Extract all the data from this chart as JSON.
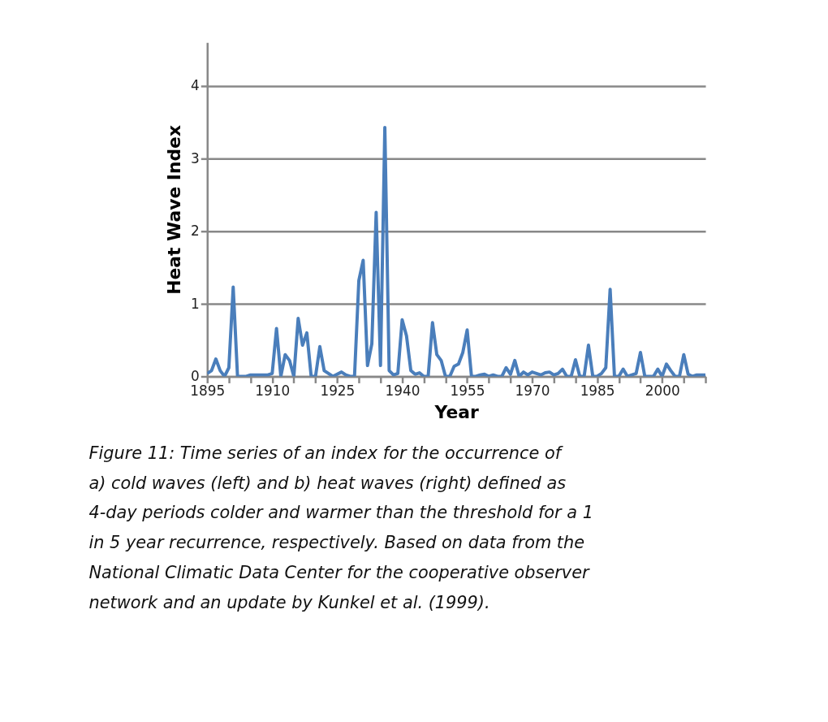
{
  "chart_data": {
    "type": "line",
    "xlabel": "Year",
    "ylabel": "Heat Wave Index",
    "x": [
      1895,
      1896,
      1897,
      1898,
      1899,
      1900,
      1901,
      1902,
      1903,
      1904,
      1905,
      1906,
      1907,
      1908,
      1909,
      1910,
      1911,
      1912,
      1913,
      1914,
      1915,
      1916,
      1917,
      1918,
      1919,
      1920,
      1921,
      1922,
      1923,
      1924,
      1925,
      1926,
      1927,
      1928,
      1929,
      1930,
      1931,
      1932,
      1933,
      1934,
      1935,
      1936,
      1937,
      1938,
      1939,
      1940,
      1941,
      1942,
      1943,
      1944,
      1945,
      1946,
      1947,
      1948,
      1949,
      1950,
      1951,
      1952,
      1953,
      1954,
      1955,
      1956,
      1957,
      1958,
      1959,
      1960,
      1961,
      1962,
      1963,
      1964,
      1965,
      1966,
      1967,
      1968,
      1969,
      1970,
      1971,
      1972,
      1973,
      1974,
      1975,
      1976,
      1977,
      1978,
      1979,
      1980,
      1981,
      1982,
      1983,
      1984,
      1985,
      1986,
      1987,
      1988,
      1989,
      1990,
      1991,
      1992,
      1993,
      1994,
      1995,
      1996,
      1997,
      1998,
      1999,
      2000,
      2001,
      2002,
      2003,
      2004,
      2005,
      2006,
      2007,
      2008,
      2009,
      2010
    ],
    "series": [
      {
        "color": "#4a7ebb",
        "values": [
          0.04,
          0.08,
          0.24,
          0.08,
          0,
          0.12,
          1.23,
          0,
          0,
          0,
          0.02,
          0.02,
          0.02,
          0.02,
          0.02,
          0.04,
          0.66,
          0,
          0.3,
          0.22,
          0,
          0.8,
          0.43,
          0.6,
          0,
          0,
          0.41,
          0.08,
          0.04,
          0,
          0.03,
          0.06,
          0.02,
          0,
          0,
          1.32,
          1.6,
          0.15,
          0.45,
          2.26,
          0.15,
          3.43,
          0.08,
          0.02,
          0.04,
          0.78,
          0.56,
          0.08,
          0.03,
          0.05,
          0,
          0,
          0.74,
          0.3,
          0.22,
          0,
          0,
          0.14,
          0.17,
          0.33,
          0.64,
          0,
          0,
          0.02,
          0.03,
          0,
          0.02,
          0,
          0,
          0.12,
          0.03,
          0.22,
          0,
          0.06,
          0.02,
          0.06,
          0.04,
          0.02,
          0.05,
          0.06,
          0.02,
          0.04,
          0.1,
          0,
          0,
          0.23,
          0,
          0,
          0.43,
          0,
          0,
          0.04,
          0.12,
          1.2,
          0,
          0,
          0.1,
          0,
          0.02,
          0.04,
          0.33,
          0,
          0,
          0,
          0.1,
          0,
          0.17,
          0.08,
          0,
          0,
          0.3,
          0.03,
          0,
          0.02,
          0.02,
          0.02
        ]
      }
    ],
    "xlim": [
      1895,
      2010
    ],
    "xticks": [
      1895,
      {
        "value": 1900,
        "label": null
      },
      {
        "value": 1905,
        "label": null
      },
      1910,
      {
        "value": 1915,
        "label": null
      },
      {
        "value": 1920,
        "label": null
      },
      1925,
      {
        "value": 1930,
        "label": null
      },
      {
        "value": 1935,
        "label": null
      },
      1940,
      {
        "value": 1945,
        "label": null
      },
      {
        "value": 1950,
        "label": null
      },
      1955,
      {
        "value": 1960,
        "label": null
      },
      {
        "value": 1965,
        "label": null
      },
      1970,
      {
        "value": 1975,
        "label": null
      },
      {
        "value": 1980,
        "label": null
      },
      1985,
      {
        "value": 1990,
        "label": null
      },
      {
        "value": 1995,
        "label": null
      },
      2000,
      {
        "value": 2005,
        "label": null
      },
      {
        "value": 2010,
        "label": null
      }
    ],
    "ylim": [
      0,
      4.6
    ],
    "yticks": [
      0,
      1,
      2,
      3,
      4
    ],
    "grid": "y",
    "legend": false,
    "marker": "none",
    "line_style": "solid",
    "annotations": [
      "Figure 11: Time series of an index for the occurrence of a) cold waves (left) and b) heat waves  (right) defined as 4-day periods colder and warmer than the threshold for a 1 in 5 year recurrence, respectively. Based on data from the National Climatic Data Center for the cooperative observer network and an update by Kunkel et al. (1999)."
    ]
  }
}
